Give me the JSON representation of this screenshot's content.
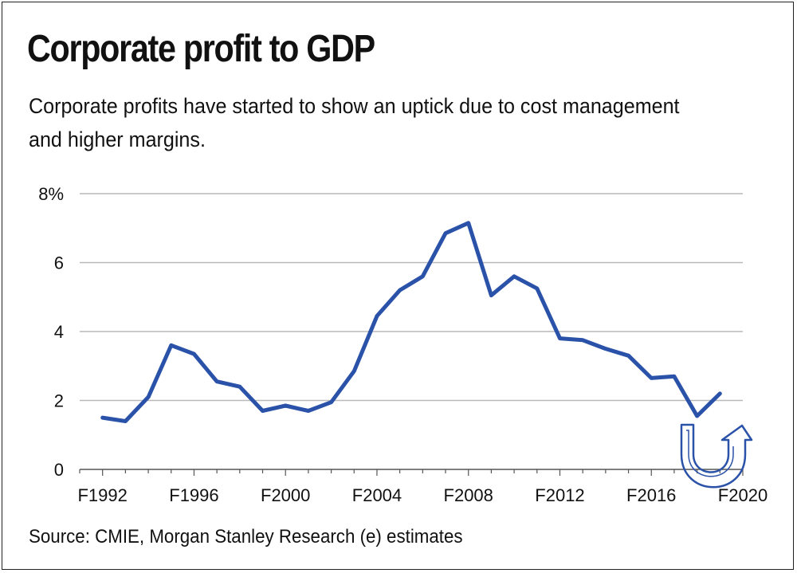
{
  "title": "Corporate profit to GDP",
  "subtitle": "Corporate profits have started to show an uptick due to cost management and higher margins.",
  "source": "Source: CMIE, Morgan Stanley Research (e) estimates",
  "colors": {
    "line": "#2a52a8",
    "grid": "#b9b9b9",
    "axis": "#555555",
    "text": "#111111"
  },
  "chart_data": {
    "type": "line",
    "title": "Corporate profit to GDP",
    "xlabel": "",
    "ylabel": "",
    "x_tick_labels": [
      "F1992",
      "F1996",
      "F2000",
      "F2004",
      "F2008",
      "F2012",
      "F2016",
      "F2020"
    ],
    "y_tick_labels": [
      "0",
      "2",
      "4",
      "6",
      "8%"
    ],
    "ylim": [
      0,
      8
    ],
    "grid": "horizontal",
    "legend": "none",
    "annotation": "upward u-turn arrow near F2019-F2020",
    "series": [
      {
        "x": [
          1992,
          1993,
          1994,
          1995,
          1996,
          1997,
          1998,
          1999,
          2000,
          2001,
          2002,
          2003,
          2004,
          2005,
          2006,
          2007,
          2008,
          2009,
          2010,
          2011,
          2012,
          2013,
          2014,
          2015,
          2016,
          2017,
          2018,
          2019
        ],
        "values": [
          1.5,
          1.4,
          2.1,
          3.6,
          3.35,
          2.55,
          2.4,
          1.7,
          1.85,
          1.7,
          1.95,
          2.85,
          4.45,
          5.2,
          5.6,
          6.85,
          7.15,
          5.05,
          5.6,
          5.25,
          3.8,
          3.75,
          3.5,
          3.3,
          2.65,
          2.7,
          1.55,
          2.2
        ]
      }
    ]
  }
}
